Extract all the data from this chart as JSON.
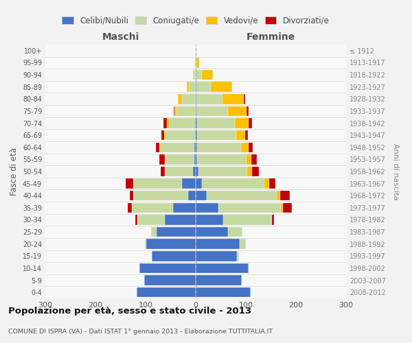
{
  "age_groups": [
    "0-4",
    "5-9",
    "10-14",
    "15-19",
    "20-24",
    "25-29",
    "30-34",
    "35-39",
    "40-44",
    "45-49",
    "50-54",
    "55-59",
    "60-64",
    "65-69",
    "70-74",
    "75-79",
    "80-84",
    "85-89",
    "90-94",
    "95-99",
    "100+"
  ],
  "birth_years": [
    "2008-2012",
    "2003-2007",
    "1998-2002",
    "1993-1997",
    "1988-1992",
    "1983-1987",
    "1978-1982",
    "1973-1977",
    "1968-1972",
    "1963-1967",
    "1958-1962",
    "1953-1957",
    "1948-1952",
    "1943-1947",
    "1938-1942",
    "1933-1937",
    "1928-1932",
    "1923-1927",
    "1918-1922",
    "1913-1917",
    "≤ 1912"
  ],
  "male_celibi": [
    118,
    103,
    112,
    88,
    98,
    78,
    62,
    45,
    15,
    28,
    5,
    3,
    3,
    2,
    2,
    0,
    0,
    0,
    0,
    0,
    0
  ],
  "male_coniugati": [
    0,
    0,
    0,
    0,
    4,
    10,
    55,
    82,
    108,
    95,
    55,
    57,
    67,
    58,
    52,
    38,
    28,
    14,
    4,
    1,
    0
  ],
  "male_vedovi": [
    0,
    0,
    0,
    0,
    0,
    1,
    0,
    1,
    1,
    2,
    2,
    2,
    3,
    3,
    4,
    4,
    7,
    4,
    2,
    0,
    0
  ],
  "male_divorziati": [
    0,
    0,
    0,
    0,
    0,
    0,
    3,
    7,
    8,
    15,
    8,
    10,
    7,
    5,
    7,
    2,
    0,
    0,
    0,
    0,
    0
  ],
  "fem_nubili": [
    110,
    92,
    105,
    82,
    88,
    65,
    55,
    45,
    22,
    12,
    5,
    3,
    3,
    3,
    3,
    2,
    2,
    2,
    0,
    0,
    0
  ],
  "fem_coniugate": [
    0,
    0,
    0,
    4,
    12,
    28,
    95,
    125,
    140,
    125,
    98,
    98,
    88,
    78,
    75,
    62,
    52,
    28,
    12,
    2,
    0
  ],
  "fem_vedove": [
    0,
    0,
    0,
    0,
    0,
    0,
    2,
    4,
    7,
    9,
    10,
    10,
    14,
    18,
    28,
    38,
    42,
    42,
    22,
    5,
    0
  ],
  "fem_divorziate": [
    0,
    0,
    0,
    0,
    0,
    0,
    4,
    18,
    18,
    13,
    13,
    11,
    9,
    5,
    7,
    4,
    2,
    0,
    0,
    0,
    0
  ],
  "colors": {
    "celibi": "#4472c4",
    "coniugati": "#c5d9a0",
    "vedovi": "#ffc000",
    "divorziati": "#c0000b"
  },
  "title": "Popolazione per età, sesso e stato civile - 2013",
  "subtitle": "COMUNE DI ISPRA (VA) - Dati ISTAT 1° gennaio 2013 - Elaborazione TUTTITALIA.IT"
}
